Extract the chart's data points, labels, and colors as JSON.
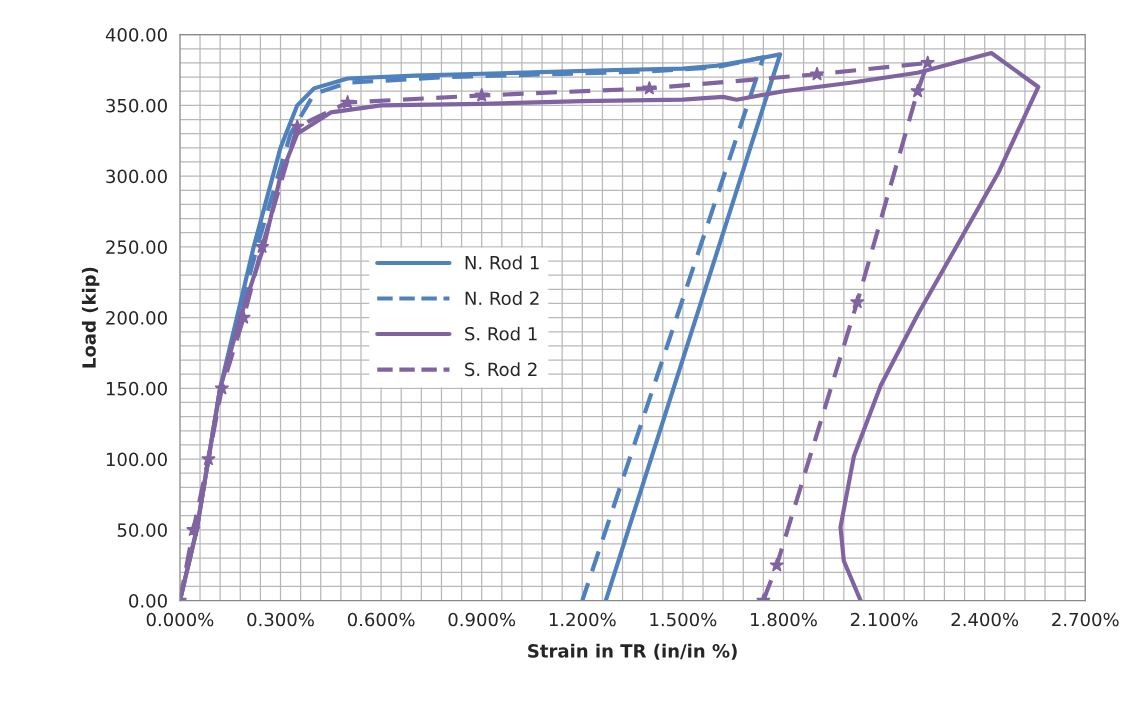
{
  "chart_data": {
    "type": "line",
    "xlabel": "Strain in TR (in/in %)",
    "ylabel": "Load (kip)",
    "xlim": [
      0,
      2.7
    ],
    "ylim": [
      0,
      400
    ],
    "xticks": [
      {
        "value": 0,
        "label": "0.000%"
      },
      {
        "value": 0.3,
        "label": "0.300%"
      },
      {
        "value": 0.6,
        "label": "0.600%"
      },
      {
        "value": 0.9,
        "label": "0.900%"
      },
      {
        "value": 1.2,
        "label": "1.200%"
      },
      {
        "value": 1.5,
        "label": "1.500%"
      },
      {
        "value": 1.8,
        "label": "1.800%"
      },
      {
        "value": 2.1,
        "label": "2.100%"
      },
      {
        "value": 2.4,
        "label": "2.400%"
      },
      {
        "value": 2.7,
        "label": "2.700%"
      }
    ],
    "yticks": [
      {
        "value": 0,
        "label": "0.00"
      },
      {
        "value": 50,
        "label": "50.00"
      },
      {
        "value": 100,
        "label": "100.00"
      },
      {
        "value": 150,
        "label": "150.00"
      },
      {
        "value": 200,
        "label": "200.00"
      },
      {
        "value": 250,
        "label": "250.00"
      },
      {
        "value": 300,
        "label": "300.00"
      },
      {
        "value": 350,
        "label": "350.00"
      },
      {
        "value": 400,
        "label": "400.00"
      }
    ],
    "grid": true,
    "legend": "center left",
    "series": [
      {
        "name": "N. Rod 1",
        "color": "#4f81bd",
        "line_style": "solid",
        "marker": "none",
        "x": [
          0,
          0.05,
          0.12,
          0.22,
          0.3,
          0.35,
          0.4,
          0.5,
          0.7,
          1.0,
          1.3,
          1.5,
          1.6,
          1.7,
          1.79,
          1.27
        ],
        "values": [
          0,
          50,
          150,
          250,
          320,
          350,
          362,
          369,
          371,
          373,
          375,
          376,
          378,
          382,
          386,
          0
        ]
      },
      {
        "name": "N. Rod 2",
        "color": "#4f81bd",
        "line_style": "dashed",
        "marker": "none",
        "x": [
          0,
          0.05,
          0.12,
          0.23,
          0.33,
          0.4,
          0.5,
          0.8,
          1.1,
          1.4,
          1.6,
          1.74,
          1.2,
          1.24
        ],
        "values": [
          0,
          50,
          150,
          250,
          330,
          358,
          366,
          370,
          372,
          374,
          377,
          384,
          0,
          0
        ]
      },
      {
        "name": "S. Rod 1",
        "color": "#8064a2",
        "line_style": "solid",
        "marker": "none",
        "x": [
          0,
          0.05,
          0.12,
          0.18,
          0.25,
          0.3,
          0.35,
          0.45,
          0.6,
          0.9,
          1.2,
          1.5,
          1.62,
          1.66,
          1.8,
          2.0,
          2.2,
          2.42,
          2.56,
          2.44,
          2.2,
          2.09,
          2.01,
          1.97,
          1.98,
          2.03
        ],
        "values": [
          0,
          50,
          150,
          200,
          250,
          300,
          330,
          345,
          350,
          351,
          353,
          354,
          356,
          354,
          360,
          366,
          373,
          387,
          363,
          302,
          202,
          152,
          102,
          52,
          28,
          0
        ]
      },
      {
        "name": "S. Rod 2",
        "color": "#8064a2",
        "line_style": "dashed",
        "marker": "star",
        "x": [
          0,
          0.04,
          0.085,
          0.125,
          0.19,
          0.245,
          0.35,
          0.5,
          0.9,
          1.4,
          1.9,
          2.23,
          2.2,
          2.02,
          1.78,
          1.74
        ],
        "values": [
          0,
          50,
          100,
          150,
          200,
          250,
          335,
          352,
          357,
          362,
          372,
          380,
          360,
          211,
          25,
          0
        ]
      }
    ]
  }
}
